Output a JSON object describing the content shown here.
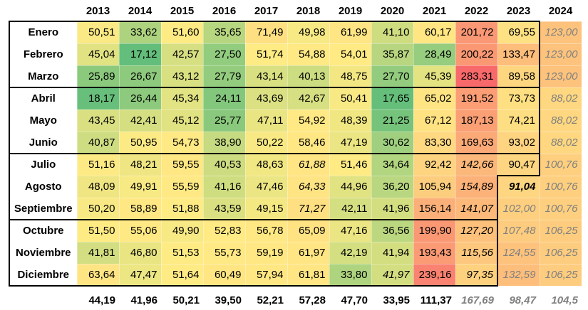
{
  "table": {
    "years": [
      "2013",
      "2014",
      "2015",
      "2016",
      "2017",
      "2018",
      "2019",
      "2020",
      "2021",
      "2022",
      "2023",
      "2024"
    ],
    "rows": [
      {
        "month": "Enero",
        "cells": [
          "50,51",
          "33,62",
          "51,60",
          "35,65",
          "71,49",
          "49,98",
          "61,99",
          "41,10",
          "60,17",
          "201,72",
          "69,55",
          {
            "text": "123,00",
            "style": "italic-gray"
          }
        ]
      },
      {
        "month": "Febrero",
        "cells": [
          "45,04",
          "17,12",
          "42,57",
          "27,50",
          "51,74",
          "54,88",
          "54,01",
          "35,87",
          "28,49",
          "200,22",
          "133,47",
          {
            "text": "123,00",
            "style": "italic-gray"
          }
        ]
      },
      {
        "month": "Marzo",
        "cells": [
          "25,89",
          "26,67",
          "43,12",
          "27,79",
          "43,14",
          "40,13",
          "48,75",
          "27,70",
          "45,39",
          "283,31",
          "89,58",
          {
            "text": "123,00",
            "style": "italic-gray"
          }
        ]
      },
      {
        "month": "Abril",
        "cells": [
          "18,17",
          "26,44",
          "45,34",
          "24,11",
          "43,69",
          "42,67",
          "50,41",
          "17,65",
          "65,02",
          "191,52",
          "73,73",
          {
            "text": "88,02",
            "style": "italic-gray"
          }
        ]
      },
      {
        "month": "Mayo",
        "cells": [
          "43,45",
          "42,41",
          "45,12",
          "25,77",
          "47,11",
          "54,92",
          "48,39",
          "21,25",
          "67,12",
          "187,13",
          "74,21",
          {
            "text": "88,02",
            "style": "italic-gray"
          }
        ]
      },
      {
        "month": "Junio",
        "cells": [
          "40,87",
          "50,95",
          "54,73",
          "38,90",
          "50,22",
          "58,46",
          "47,19",
          "30,62",
          "83,30",
          "169,63",
          "93,02",
          {
            "text": "88,02",
            "style": "italic-gray"
          }
        ]
      },
      {
        "month": "Julio",
        "cells": [
          "51,16",
          "48,21",
          "59,55",
          "40,53",
          "48,63",
          {
            "text": "61,88",
            "style": "italic"
          },
          "51,46",
          "34,64",
          "92,42",
          {
            "text": "142,66",
            "style": "italic"
          },
          "90,47",
          {
            "text": "100,76",
            "style": "italic-gray"
          }
        ]
      },
      {
        "month": "Agosto",
        "cells": [
          "48,09",
          "49,91",
          "55,59",
          "41,16",
          "47,46",
          {
            "text": "64,33",
            "style": "italic"
          },
          "44,96",
          "36,20",
          "105,94",
          {
            "text": "154,89",
            "style": "italic"
          },
          {
            "text": "91,04",
            "style": "bold-italic"
          },
          {
            "text": "100,76",
            "style": "italic-gray"
          }
        ]
      },
      {
        "month": "Septiembre",
        "cells": [
          "50,20",
          "58,89",
          "51,88",
          "43,59",
          "49,15",
          {
            "text": "71,27",
            "style": "italic"
          },
          "42,11",
          "41,96",
          "156,14",
          {
            "text": "141,07",
            "style": "italic"
          },
          {
            "text": "102,00",
            "style": "italic-gray"
          },
          {
            "text": "100,76",
            "style": "italic-gray"
          }
        ]
      },
      {
        "month": "Octubre",
        "cells": [
          "51,50",
          "55,06",
          "49,90",
          "52,83",
          "56,78",
          "65,09",
          "47,16",
          "36,56",
          "199,90",
          {
            "text": "127,20",
            "style": "italic"
          },
          {
            "text": "107,48",
            "style": "italic-gray"
          },
          {
            "text": "106,25",
            "style": "italic-gray"
          }
        ]
      },
      {
        "month": "Noviembre",
        "cells": [
          "41,81",
          "46,80",
          "51,53",
          "55,73",
          "59,19",
          "61,97",
          "42,19",
          "41,94",
          "193,43",
          {
            "text": "115,56",
            "style": "italic"
          },
          {
            "text": "124,55",
            "style": "italic-gray"
          },
          {
            "text": "106,25",
            "style": "italic-gray"
          }
        ]
      },
      {
        "month": "Diciembre",
        "cells": [
          "63,64",
          "47,47",
          "51,64",
          "60,49",
          "57,94",
          "61,81",
          "33,80",
          {
            "text": "41,97",
            "style": "italic"
          },
          "239,16",
          {
            "text": "97,35",
            "style": "italic"
          },
          {
            "text": "132,59",
            "style": "italic-gray"
          },
          {
            "text": "106,25",
            "style": "italic-gray"
          }
        ]
      }
    ],
    "totals": [
      "44,19",
      "41,96",
      "50,21",
      "39,50",
      "52,21",
      "57,28",
      "47,70",
      "33,95",
      "111,37",
      {
        "text": "167,69",
        "style": "italic-gray"
      },
      {
        "text": "98,47",
        "style": "italic-gray"
      },
      {
        "text": "104,5",
        "style": "italic-gray"
      }
    ]
  }
}
